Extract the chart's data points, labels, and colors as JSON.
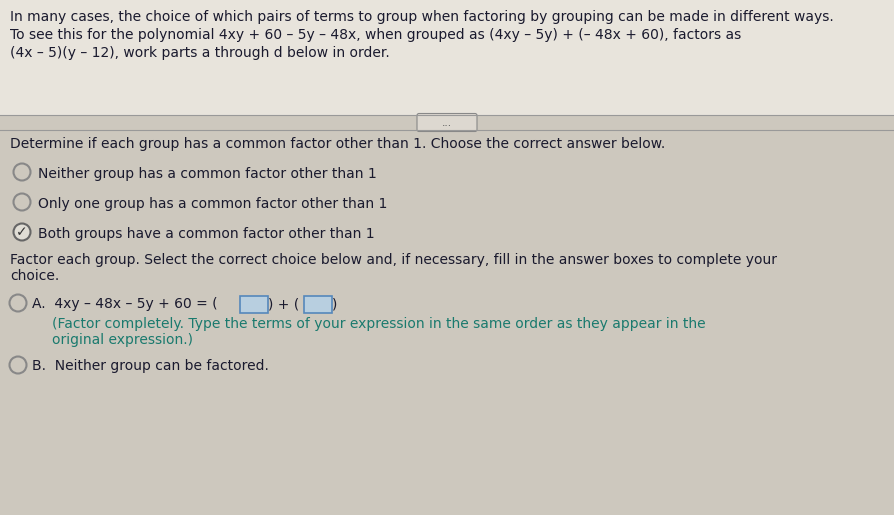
{
  "bg_color": "#cdc8be",
  "text_color": "#1a1a2e",
  "teal_color": "#1a7a6e",
  "header_lines": [
    "In many cases, the choice of which pairs of terms to group when factoring by grouping can be made in different ways.",
    "To see this for the polynomial 4xy + 60 – 5y – 48x, when grouped as (4xy – 5y) + (– 48x + 60), factors as",
    "(4x – 5)(y – 12), work parts a through d below in order."
  ],
  "divider_btn": "...",
  "section1_text": "Determine if each group has a common factor other than 1. Choose the correct answer below.",
  "radio_options": [
    {
      "text": "Neither group has a common factor other than 1",
      "selected": false
    },
    {
      "text": "Only one group has a common factor other than 1",
      "selected": false
    },
    {
      "text": "Both groups have a common factor other than 1",
      "selected": true
    }
  ],
  "section2_text": "Factor each group. Select the correct choice below and, if necessary, fill in the answer boxes to complete your",
  "section2_text2": "choice.",
  "choice_A_pre": "A.  4xy – 48x – 5y + 60 = (",
  "choice_A_mid": ") + (",
  "choice_A_end": ")",
  "choice_A_note1": "(Factor completely. Type the terms of your expression in the same order as they appear in the",
  "choice_A_note2": "original expression.)",
  "choice_B_text": "B.  Neither group can be factored.",
  "checkmark": "✓",
  "box_fill": "#b8cfe0",
  "box_edge": "#5588bb"
}
